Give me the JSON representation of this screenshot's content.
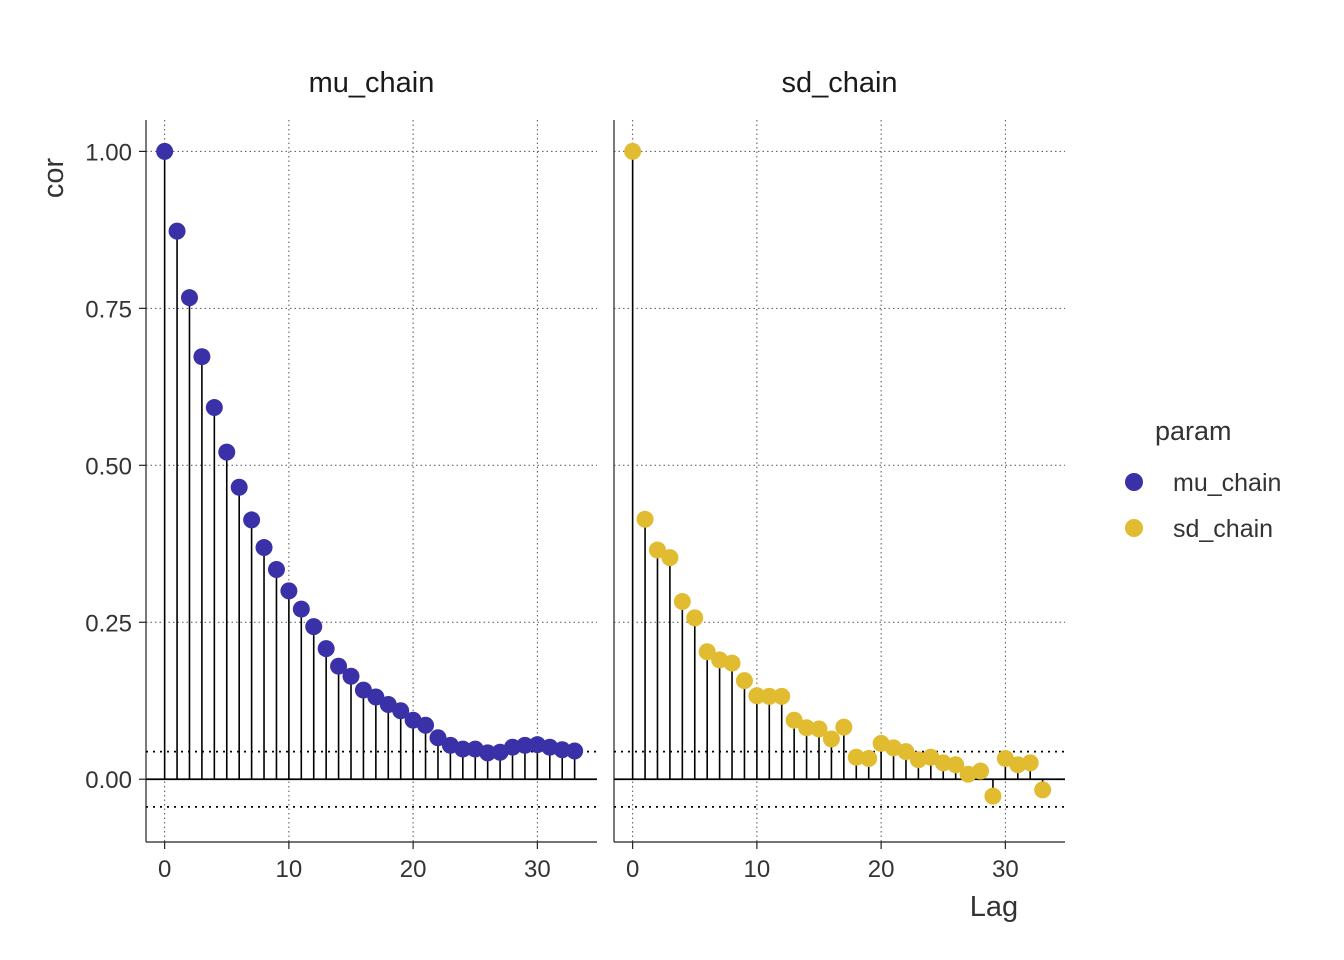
{
  "chart_data": {
    "type": "scatter",
    "subtype": "lollipop-acf",
    "ylabel": "cor",
    "xlabel": "Lag",
    "xlim": [
      -1.5,
      34.8
    ],
    "ylim": [
      -0.1,
      1.05
    ],
    "x_ticks": [
      0,
      10,
      20,
      30
    ],
    "y_ticks": [
      0.0,
      0.25,
      0.5,
      0.75,
      1.0
    ],
    "y_tick_labels": [
      "0.00",
      "0.25",
      "0.50",
      "0.75",
      "1.00"
    ],
    "x_tick_labels": [
      "0",
      "10",
      "20",
      "30"
    ],
    "confidence_bounds": [
      0.044,
      -0.044
    ],
    "grid": "dotted",
    "legend": {
      "title": "param",
      "position": "right",
      "entries": [
        {
          "label": "mu_chain",
          "color": "#3A31A8"
        },
        {
          "label": "sd_chain",
          "color": "#E1BB30"
        }
      ]
    },
    "panels": [
      {
        "title": "mu_chain",
        "color": "#3A31A8",
        "x": [
          0,
          1,
          2,
          3,
          4,
          5,
          6,
          7,
          8,
          9,
          10,
          11,
          12,
          13,
          14,
          15,
          16,
          17,
          18,
          19,
          20,
          21,
          22,
          23,
          24,
          25,
          26,
          27,
          28,
          29,
          30,
          31,
          32,
          33
        ],
        "y": [
          1.0,
          0.873,
          0.767,
          0.673,
          0.592,
          0.521,
          0.465,
          0.413,
          0.369,
          0.334,
          0.3,
          0.271,
          0.243,
          0.208,
          0.18,
          0.164,
          0.142,
          0.131,
          0.119,
          0.109,
          0.094,
          0.086,
          0.066,
          0.054,
          0.048,
          0.048,
          0.042,
          0.043,
          0.051,
          0.054,
          0.055,
          0.051,
          0.047,
          0.045
        ]
      },
      {
        "title": "sd_chain",
        "color": "#E1BB30",
        "x": [
          0,
          1,
          2,
          3,
          4,
          5,
          6,
          7,
          8,
          9,
          10,
          11,
          12,
          13,
          14,
          15,
          16,
          17,
          18,
          19,
          20,
          21,
          22,
          23,
          24,
          25,
          26,
          27,
          28,
          29,
          30,
          31,
          32,
          33
        ],
        "y": [
          1.0,
          0.414,
          0.365,
          0.353,
          0.283,
          0.257,
          0.203,
          0.19,
          0.185,
          0.157,
          0.133,
          0.132,
          0.132,
          0.094,
          0.082,
          0.08,
          0.064,
          0.083,
          0.035,
          0.033,
          0.057,
          0.05,
          0.044,
          0.031,
          0.035,
          0.026,
          0.023,
          0.008,
          0.013,
          -0.027,
          0.033,
          0.023,
          0.026,
          -0.017
        ]
      }
    ]
  }
}
